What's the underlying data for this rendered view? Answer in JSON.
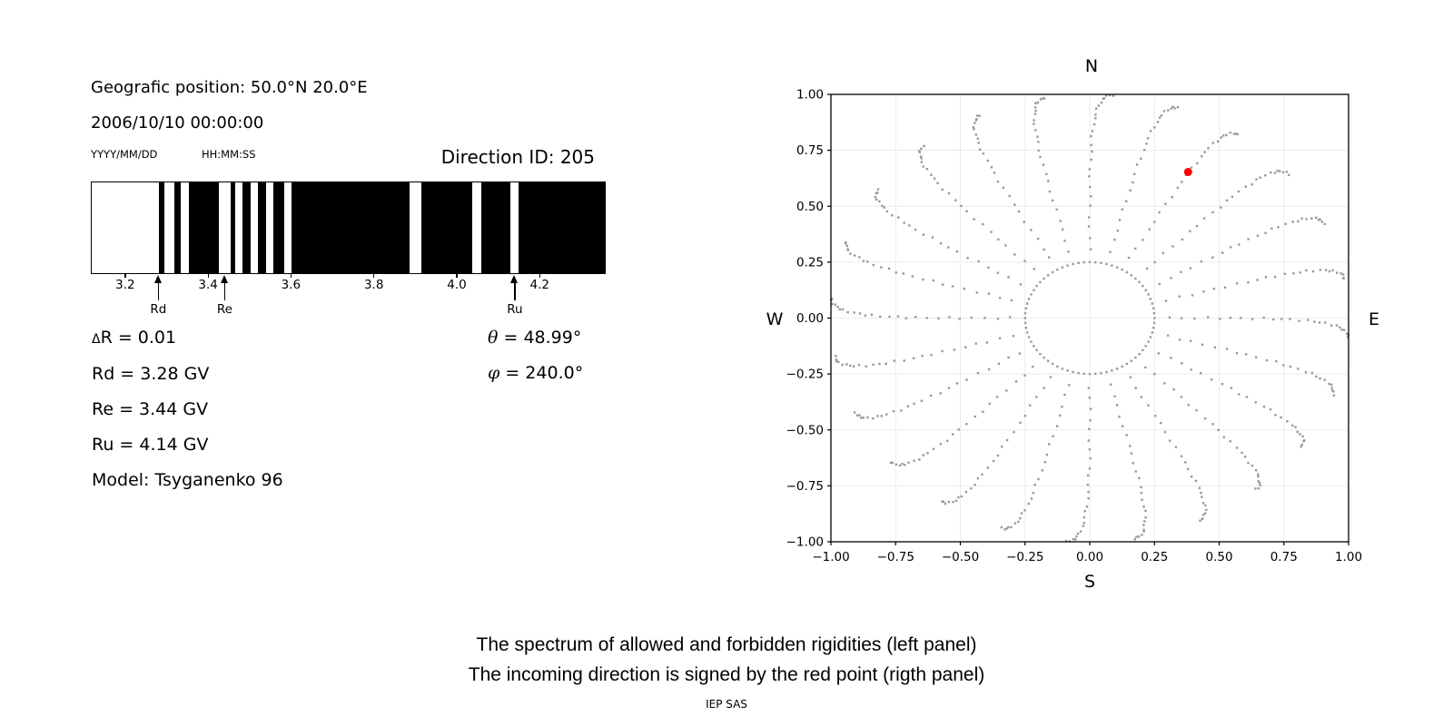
{
  "header": {
    "geo_position": "Geografic position: 50.0°N 20.0°E",
    "datetime": "2006/10/10 00:00:00",
    "date_format_hint": "YYYY/MM/DD",
    "time_format_hint": "HH:MM:SS",
    "direction_id": "Direction ID: 205"
  },
  "stats": {
    "delta_symbol": "Δ",
    "delta_rest": "R = 0.01",
    "rd_line": "Rd = 3.28 GV",
    "re_line": "Re = 3.44 GV",
    "ru_line": "Ru = 4.14 GV",
    "model_line": "Model: Tsyganenko 96",
    "theta_symbol": "θ",
    "theta_rest": " = 48.99°",
    "phi_symbol": "φ",
    "phi_rest": " = 240.0°"
  },
  "captions": {
    "line1": "The spectrum of allowed and forbidden rigidities (left panel)",
    "line2": "The incoming direction is signed by the red point (rigth panel)",
    "credit": "IEP SAS"
  },
  "colors": {
    "dot_gray": "#999999",
    "red_point": "#ff0000",
    "gridline": "#ebebeb",
    "axis_black": "#000000"
  },
  "chart_data": [
    {
      "type": "bar",
      "subtype": "rigidity-barcode-spectrum",
      "description": "Allowed (black) and forbidden (white) rigidities",
      "xlim": [
        3.117,
        4.355
      ],
      "xticks": [
        3.2,
        3.4,
        3.6,
        3.8,
        4.0,
        4.2
      ],
      "xtick_labels": [
        "3.2",
        "3.4",
        "3.6",
        "3.8",
        "4.0",
        "4.2"
      ],
      "allowed_black_region": [
        3.279,
        4.355
      ],
      "forbidden_white_bands": [
        [
          3.292,
          3.316
        ],
        [
          3.332,
          3.352
        ],
        [
          3.424,
          3.453
        ],
        [
          3.464,
          3.48
        ],
        [
          3.5,
          3.518
        ],
        [
          3.537,
          3.555
        ],
        [
          3.581,
          3.599
        ],
        [
          3.884,
          3.912
        ],
        [
          4.035,
          4.056
        ],
        [
          4.127,
          4.147
        ]
      ],
      "cutoffs": [
        {
          "label": "Rd",
          "value": 3.28
        },
        {
          "label": "Re",
          "value": 3.44
        },
        {
          "label": "Ru",
          "value": 4.14
        }
      ]
    },
    {
      "type": "scatter",
      "subtype": "incoming-direction-map",
      "xlim": [
        -1.0,
        1.0
      ],
      "ylim": [
        -1.0,
        1.0
      ],
      "xticks": [
        -1.0,
        -0.75,
        -0.5,
        -0.25,
        0.0,
        0.25,
        0.5,
        0.75,
        1.0
      ],
      "yticks": [
        -1.0,
        -0.75,
        -0.5,
        -0.25,
        0.0,
        0.25,
        0.5,
        0.75,
        1.0
      ],
      "xtick_labels": [
        "−1.00",
        "−0.75",
        "−0.50",
        "−0.25",
        "0.00",
        "0.25",
        "0.50",
        "0.75",
        "1.00"
      ],
      "ytick_labels": [
        "1.00",
        "0.75",
        "0.50",
        "0.25",
        "0.00",
        "−0.25",
        "−0.50",
        "−0.75",
        "−1.00"
      ],
      "grid": true,
      "legend_position": "none",
      "compass": {
        "north": "N",
        "south": "S",
        "east": "E",
        "west": "W"
      },
      "red_point": {
        "x": 0.38,
        "y": 0.653,
        "zenith_deg": 48.99,
        "azimuth_deg": 240.0
      },
      "direction_grid": {
        "inner_ring_radius": 0.25,
        "inner_ring_step_deg": 5,
        "spoke_azimuth_step_deg": 15,
        "zenith_start_deg": 18,
        "zenith_end_deg": 90,
        "zenith_step_deg": 3,
        "radius_rule": "sin(zenith)",
        "spoke_twist_max_deg": 5
      }
    }
  ]
}
